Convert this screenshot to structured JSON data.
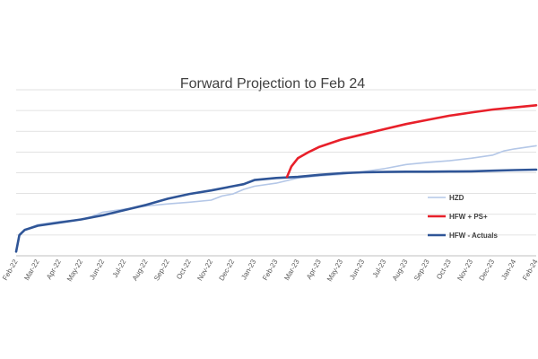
{
  "chart_data": {
    "type": "line",
    "title": "Forward Projection to Feb 24",
    "xlabel": "",
    "ylabel": "",
    "x_ticks": [
      "Feb-22",
      "Mar-22",
      "Apr-22",
      "May-22",
      "Jun-22",
      "Jul-22",
      "Aug-22",
      "Sep-22",
      "Oct-22",
      "Nov-22",
      "Dec-22",
      "Jan-23",
      "Feb-23",
      "Mar-23",
      "Apr-23",
      "May-23",
      "Jun-23",
      "Jul-23",
      "Aug-23",
      "Sep-23",
      "Oct-23",
      "Nov-23",
      "Dec-23",
      "Jan-24",
      "Feb-24"
    ],
    "ylim": [
      0,
      800
    ],
    "grid": true,
    "legend_position": "right",
    "series": [
      {
        "name": "HZD",
        "color": "#b4c7e7",
        "points": [
          [
            0,
            20
          ],
          [
            0.15,
            95
          ],
          [
            0.4,
            125
          ],
          [
            1,
            150
          ],
          [
            2,
            165
          ],
          [
            3,
            175
          ],
          [
            3.5,
            190
          ],
          [
            4,
            210
          ],
          [
            5,
            225
          ],
          [
            6,
            240
          ],
          [
            7,
            250
          ],
          [
            8,
            258
          ],
          [
            9,
            268
          ],
          [
            9.5,
            288
          ],
          [
            10,
            298
          ],
          [
            10.5,
            320
          ],
          [
            11,
            335
          ],
          [
            12,
            350
          ],
          [
            13,
            375
          ],
          [
            14,
            385
          ],
          [
            15,
            392
          ],
          [
            16,
            405
          ],
          [
            17,
            420
          ],
          [
            18,
            440
          ],
          [
            19,
            450
          ],
          [
            20,
            458
          ],
          [
            21,
            470
          ],
          [
            22,
            485
          ],
          [
            22.5,
            505
          ],
          [
            23,
            515
          ],
          [
            24,
            530
          ]
        ]
      },
      {
        "name": "HFW + PS+",
        "color": "#e8202a",
        "points": [
          [
            12.5,
            380
          ],
          [
            12.7,
            430
          ],
          [
            13,
            470
          ],
          [
            13.5,
            500
          ],
          [
            14,
            525
          ],
          [
            15,
            560
          ],
          [
            16,
            585
          ],
          [
            17,
            610
          ],
          [
            18,
            635
          ],
          [
            19,
            655
          ],
          [
            20,
            675
          ],
          [
            21,
            690
          ],
          [
            22,
            705
          ],
          [
            23,
            715
          ],
          [
            24,
            725
          ]
        ]
      },
      {
        "name": "HFW - Actuals",
        "color": "#2f5597",
        "points": [
          [
            0,
            20
          ],
          [
            0.15,
            100
          ],
          [
            0.4,
            125
          ],
          [
            1,
            145
          ],
          [
            2,
            160
          ],
          [
            3,
            175
          ],
          [
            4,
            195
          ],
          [
            5,
            220
          ],
          [
            6,
            245
          ],
          [
            7,
            275
          ],
          [
            8,
            298
          ],
          [
            9,
            315
          ],
          [
            10,
            335
          ],
          [
            10.5,
            345
          ],
          [
            11,
            365
          ],
          [
            12,
            375
          ],
          [
            13,
            380
          ],
          [
            14,
            390
          ],
          [
            15,
            398
          ],
          [
            16,
            402
          ],
          [
            17,
            404
          ],
          [
            18,
            405
          ],
          [
            19,
            405
          ],
          [
            20,
            406
          ],
          [
            21,
            407
          ],
          [
            22,
            410
          ],
          [
            23,
            413
          ],
          [
            24,
            415
          ]
        ]
      }
    ]
  }
}
